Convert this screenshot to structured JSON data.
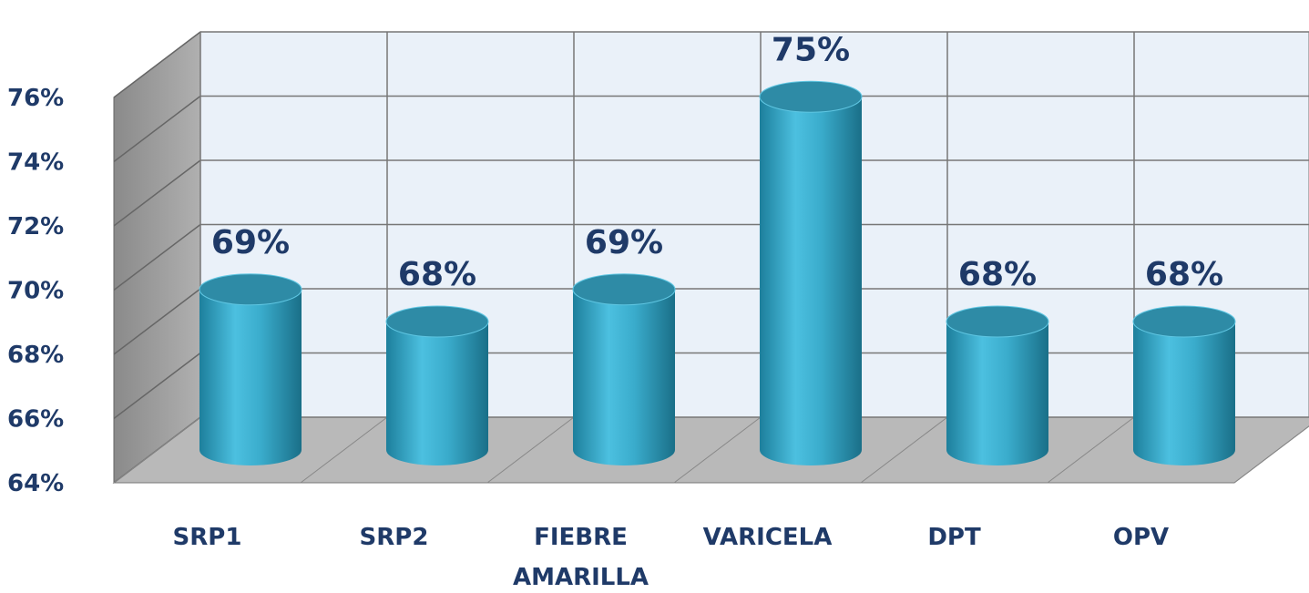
{
  "chart_data": {
    "type": "bar3d",
    "categories": [
      "SRP1",
      "SRP2",
      "FIEBRE AMARILLA",
      "VARICELA",
      "DPT",
      "OPV"
    ],
    "values": [
      69,
      68,
      69,
      75,
      68,
      68
    ],
    "value_labels": [
      "69%",
      "68%",
      "69%",
      "75%",
      "68%",
      "68%"
    ],
    "color": "#3fb0d0",
    "ylim": [
      64,
      76
    ],
    "yticks": [
      {
        "value": 64,
        "label": "64%"
      },
      {
        "value": 66,
        "label": "66%"
      },
      {
        "value": 68,
        "label": "68%"
      },
      {
        "value": 70,
        "label": "70%"
      },
      {
        "value": 72,
        "label": "72%"
      },
      {
        "value": 74,
        "label": "74%"
      },
      {
        "value": 76,
        "label": "76%"
      }
    ],
    "grid": true
  }
}
